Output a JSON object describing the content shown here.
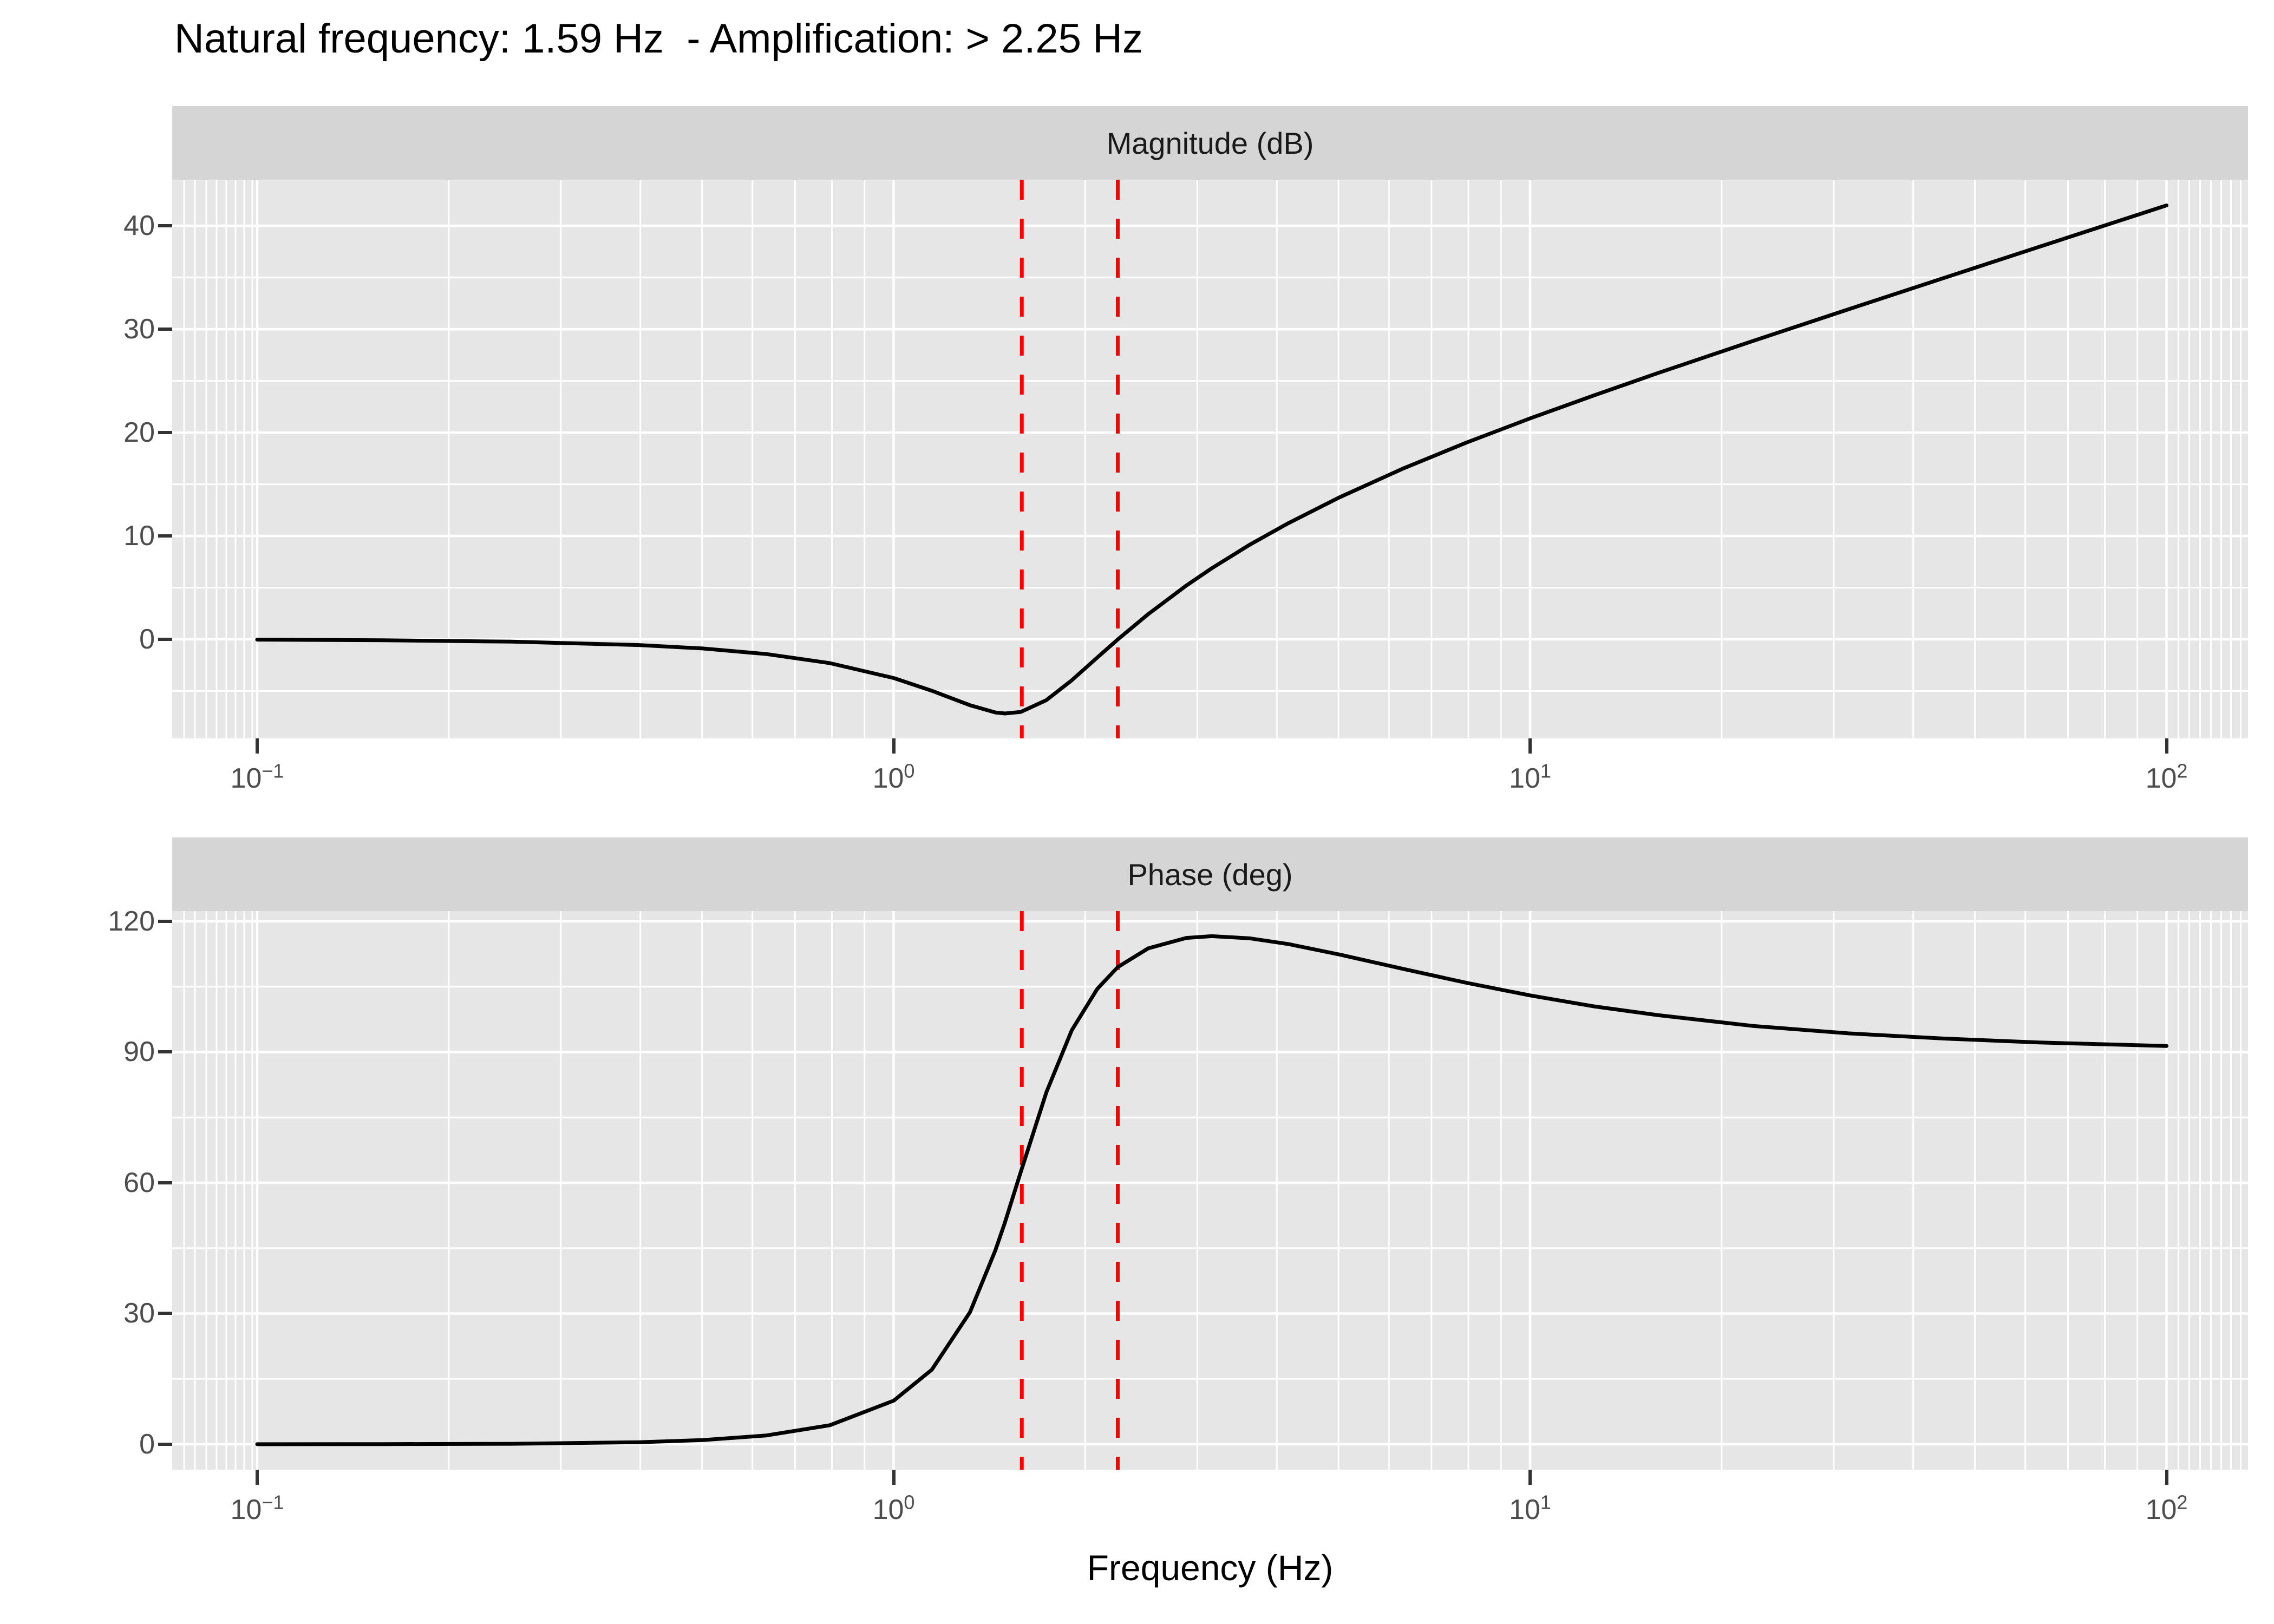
{
  "title": {
    "text": "Natural frequency: 1.59 Hz  - Amplification: > 2.25 Hz"
  },
  "x_axis": {
    "label": "Frequency (Hz)",
    "scale": "log10",
    "tick_labels": [
      {
        "base": "10",
        "exp": "−1",
        "value": 0.1
      },
      {
        "base": "10",
        "exp": "0",
        "value": 1
      },
      {
        "base": "10",
        "exp": "1",
        "value": 10
      },
      {
        "base": "10",
        "exp": "2",
        "value": 100
      }
    ]
  },
  "annotations": {
    "natural_frequency_hz": 1.59,
    "amplification_threshold_hz": 2.25,
    "vline_style": "dashed"
  },
  "colors": {
    "strip_bg": "#D5D5D5",
    "panel_bg": "#E6E6E6",
    "grid": "#FFFFFF",
    "curve": "#000000",
    "vline": "#FF0000",
    "axis_text": "#4D4D4D",
    "tick_mark": "#333333",
    "title_text": "#000000"
  },
  "chart_data": [
    {
      "type": "line",
      "panel": "Magnitude (dB)",
      "x": [
        0.1,
        0.158,
        0.251,
        0.398,
        0.501,
        0.631,
        0.794,
        1.0,
        1.148,
        1.318,
        1.445,
        1.496,
        1.585,
        1.738,
        1.905,
        2.089,
        2.25,
        2.512,
        2.884,
        3.162,
        3.631,
        4.169,
        5.012,
        6.31,
        7.943,
        10,
        12.59,
        15.85,
        22.39,
        31.62,
        44.67,
        63.1,
        100
      ],
      "y": [
        -0.03,
        -0.09,
        -0.22,
        -0.55,
        -0.88,
        -1.42,
        -2.3,
        -3.74,
        -4.97,
        -6.37,
        -7.07,
        -7.17,
        -7.02,
        -5.88,
        -3.96,
        -1.76,
        -0.01,
        2.44,
        5.21,
        6.88,
        9.17,
        11.23,
        13.72,
        16.51,
        19.03,
        21.37,
        23.59,
        25.74,
        28.86,
        31.92,
        34.95,
        37.97,
        41.98
      ],
      "yticks": [
        0,
        10,
        20,
        30,
        40
      ],
      "ylim": [
        -9.58,
        44.46
      ],
      "xlim_log": [
        -1.134,
        2.128
      ],
      "vlines": [
        1.59,
        2.25
      ],
      "grid": true
    },
    {
      "type": "line",
      "panel": "Phase (deg)",
      "x": [
        0.1,
        0.158,
        0.251,
        0.398,
        0.501,
        0.631,
        0.794,
        1.0,
        1.148,
        1.318,
        1.445,
        1.496,
        1.585,
        1.738,
        1.905,
        2.089,
        2.25,
        2.512,
        2.884,
        3.162,
        3.631,
        4.169,
        5.012,
        6.31,
        7.943,
        10,
        12.59,
        15.85,
        22.39,
        31.62,
        44.67,
        63.1,
        100
      ],
      "y": [
        0.01,
        0.03,
        0.11,
        0.47,
        0.97,
        2.02,
        4.37,
        10.0,
        17.1,
        30.3,
        44.5,
        50.9,
        62.6,
        80.8,
        95.0,
        104.5,
        109.5,
        113.8,
        116.2,
        116.6,
        116.1,
        114.8,
        112.4,
        109.1,
        105.9,
        103.0,
        100.5,
        98.5,
        96.0,
        94.3,
        93.1,
        92.2,
        91.4
      ],
      "yticks": [
        0,
        30,
        60,
        90,
        120
      ],
      "ylim": [
        -5.84,
        122.36
      ],
      "xlim_log": [
        -1.134,
        2.128
      ],
      "vlines": [
        1.59,
        2.25
      ],
      "grid": true
    }
  ]
}
